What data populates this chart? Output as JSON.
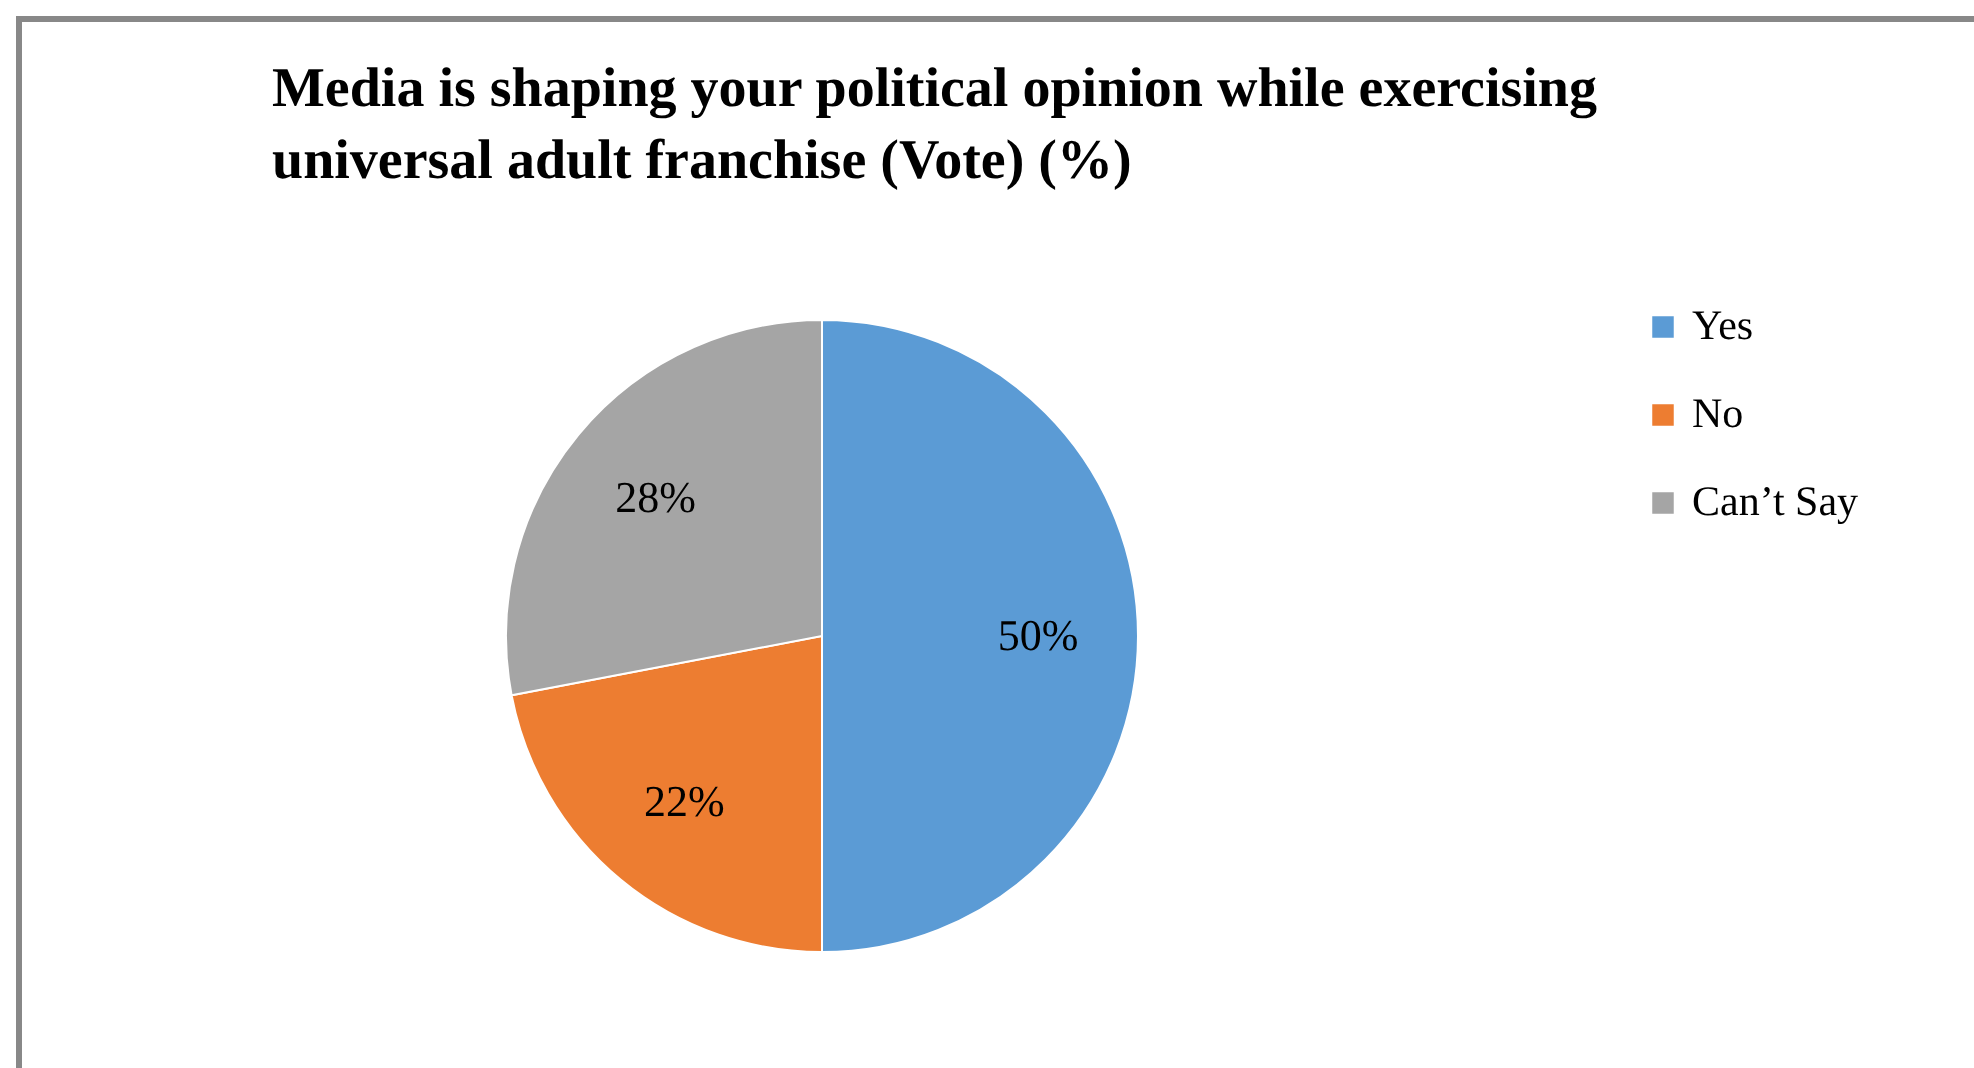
{
  "chart_data": {
    "type": "pie",
    "title": [
      "Media is shaping your political opinion while exercising",
      "universal adult franchise (Vote) (%)"
    ],
    "categories": [
      "Yes",
      "No",
      "Can’t Say"
    ],
    "values": [
      50,
      22,
      28
    ],
    "colors": [
      "#5b9bd5",
      "#ed7d31",
      "#a5a5a5"
    ],
    "value_labels": [
      "50%",
      "22%",
      "28%"
    ],
    "legend": "right"
  }
}
